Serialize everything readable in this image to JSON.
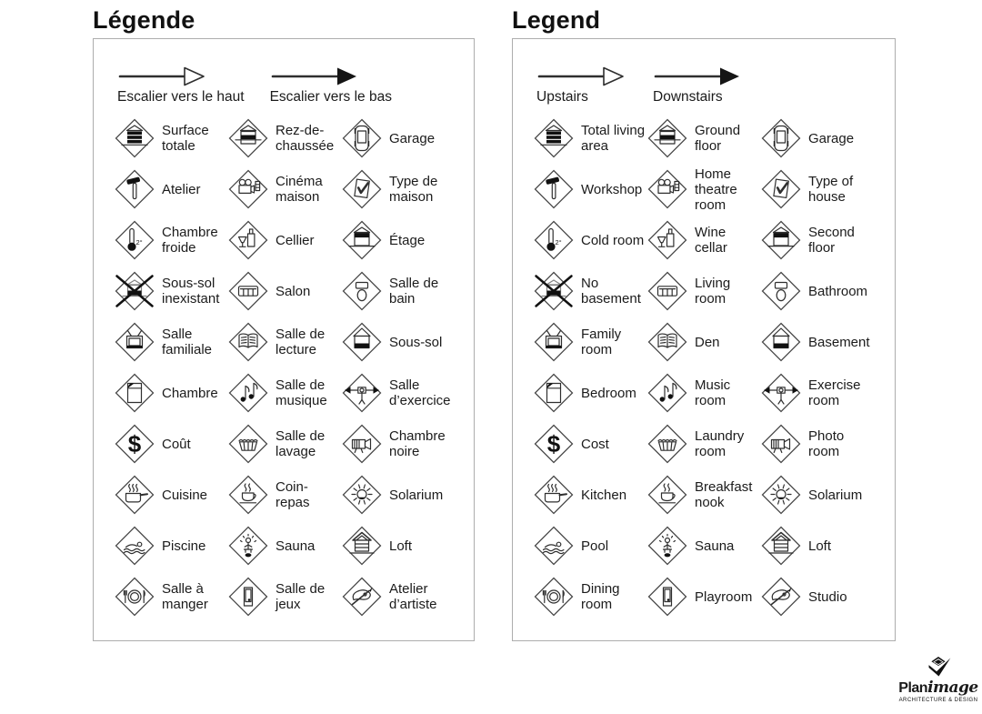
{
  "panels": [
    {
      "title": "Légende",
      "arrows": [
        {
          "icon": "stair-up-arrow",
          "label": "Escalier vers le haut"
        },
        {
          "icon": "stair-down-arrow",
          "label": "Escalier vers le bas"
        }
      ],
      "items": [
        {
          "icon": "total-living-area",
          "label": "Surface totale"
        },
        {
          "icon": "ground-floor",
          "label": "Rez-de-chaussée"
        },
        {
          "icon": "garage",
          "label": "Garage"
        },
        {
          "icon": "workshop",
          "label": "Atelier"
        },
        {
          "icon": "home-theatre",
          "label": "Cinéma maison"
        },
        {
          "icon": "type-of-house",
          "label": "Type de maison"
        },
        {
          "icon": "cold-room",
          "label": "Chambre froide"
        },
        {
          "icon": "wine-cellar",
          "label": "Cellier"
        },
        {
          "icon": "second-floor",
          "label": "Étage"
        },
        {
          "icon": "no-basement",
          "label": "Sous-sol inexistant"
        },
        {
          "icon": "living-room",
          "label": "Salon"
        },
        {
          "icon": "bathroom",
          "label": "Salle de bain"
        },
        {
          "icon": "family-room",
          "label": "Salle familiale"
        },
        {
          "icon": "den",
          "label": "Salle de lecture"
        },
        {
          "icon": "basement",
          "label": "Sous-sol"
        },
        {
          "icon": "bedroom",
          "label": "Chambre"
        },
        {
          "icon": "music-room",
          "label": "Salle de musique"
        },
        {
          "icon": "exercise-room",
          "label": "Salle d’exercice"
        },
        {
          "icon": "cost",
          "label": "Coût"
        },
        {
          "icon": "laundry-room",
          "label": "Salle de lavage"
        },
        {
          "icon": "photo-room",
          "label": "Chambre noire"
        },
        {
          "icon": "kitchen",
          "label": "Cuisine"
        },
        {
          "icon": "breakfast-nook",
          "label": "Coin-repas"
        },
        {
          "icon": "solarium",
          "label": "Solarium"
        },
        {
          "icon": "pool",
          "label": "Piscine"
        },
        {
          "icon": "sauna",
          "label": "Sauna"
        },
        {
          "icon": "loft",
          "label": "Loft"
        },
        {
          "icon": "dining-room",
          "label": "Salle à manger"
        },
        {
          "icon": "playroom",
          "label": "Salle de jeux"
        },
        {
          "icon": "studio",
          "label": "Atelier d’artiste"
        }
      ]
    },
    {
      "title": "Legend",
      "arrows": [
        {
          "icon": "stair-up-arrow",
          "label": "Upstairs"
        },
        {
          "icon": "stair-down-arrow",
          "label": "Downstairs"
        }
      ],
      "items": [
        {
          "icon": "total-living-area",
          "label": "Total living area"
        },
        {
          "icon": "ground-floor",
          "label": "Ground floor"
        },
        {
          "icon": "garage",
          "label": "Garage"
        },
        {
          "icon": "workshop",
          "label": "Workshop"
        },
        {
          "icon": "home-theatre",
          "label": "Home theatre room"
        },
        {
          "icon": "type-of-house",
          "label": "Type of house"
        },
        {
          "icon": "cold-room",
          "label": "Cold room"
        },
        {
          "icon": "wine-cellar",
          "label": "Wine cellar"
        },
        {
          "icon": "second-floor",
          "label": "Second floor"
        },
        {
          "icon": "no-basement",
          "label": "No basement"
        },
        {
          "icon": "living-room",
          "label": "Living room"
        },
        {
          "icon": "bathroom",
          "label": "Bathroom"
        },
        {
          "icon": "family-room",
          "label": "Family room"
        },
        {
          "icon": "den",
          "label": "Den"
        },
        {
          "icon": "basement",
          "label": "Basement"
        },
        {
          "icon": "bedroom",
          "label": "Bedroom"
        },
        {
          "icon": "music-room",
          "label": "Music room"
        },
        {
          "icon": "exercise-room",
          "label": "Exercise room"
        },
        {
          "icon": "cost",
          "label": "Cost"
        },
        {
          "icon": "laundry-room",
          "label": "Laundry room"
        },
        {
          "icon": "photo-room",
          "label": "Photo room"
        },
        {
          "icon": "kitchen",
          "label": "Kitchen"
        },
        {
          "icon": "breakfast-nook",
          "label": "Breakfast nook"
        },
        {
          "icon": "solarium",
          "label": "Solarium"
        },
        {
          "icon": "pool",
          "label": "Pool"
        },
        {
          "icon": "sauna",
          "label": "Sauna"
        },
        {
          "icon": "loft",
          "label": "Loft"
        },
        {
          "icon": "dining-room",
          "label": "Dining room"
        },
        {
          "icon": "playroom",
          "label": "Playroom"
        },
        {
          "icon": "studio",
          "label": "Studio"
        }
      ]
    }
  ],
  "logo": {
    "brand_bold": "Plan",
    "brand_italic": "image",
    "tagline": "ARCHITECTURE & DESIGN"
  }
}
